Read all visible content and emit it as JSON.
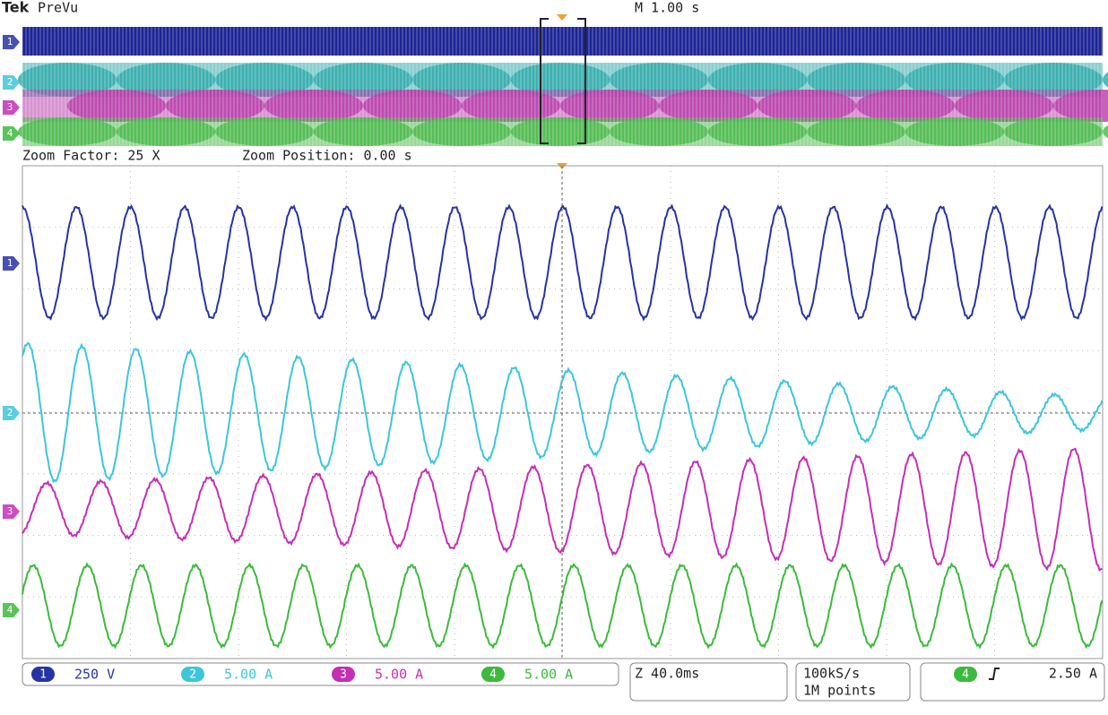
{
  "header": {
    "brand": "Tek",
    "mode": "PreVu",
    "timebase": "M 1.00 s"
  },
  "zoom": {
    "factor": "Zoom Factor: 25 X",
    "position": "Zoom Position: 0.00 s"
  },
  "channels": [
    {
      "id": "1",
      "scale": "250 V"
    },
    {
      "id": "2",
      "scale": "5.00 A"
    },
    {
      "id": "3",
      "scale": "5.00 A"
    },
    {
      "id": "4",
      "scale": "5.00 A"
    }
  ],
  "zoom_timebase": "Z 40.0ms",
  "acquisition": {
    "rate": "100kS/s",
    "length": "1M points"
  },
  "trigger": {
    "source": "4",
    "level": "2.50 A"
  }
}
